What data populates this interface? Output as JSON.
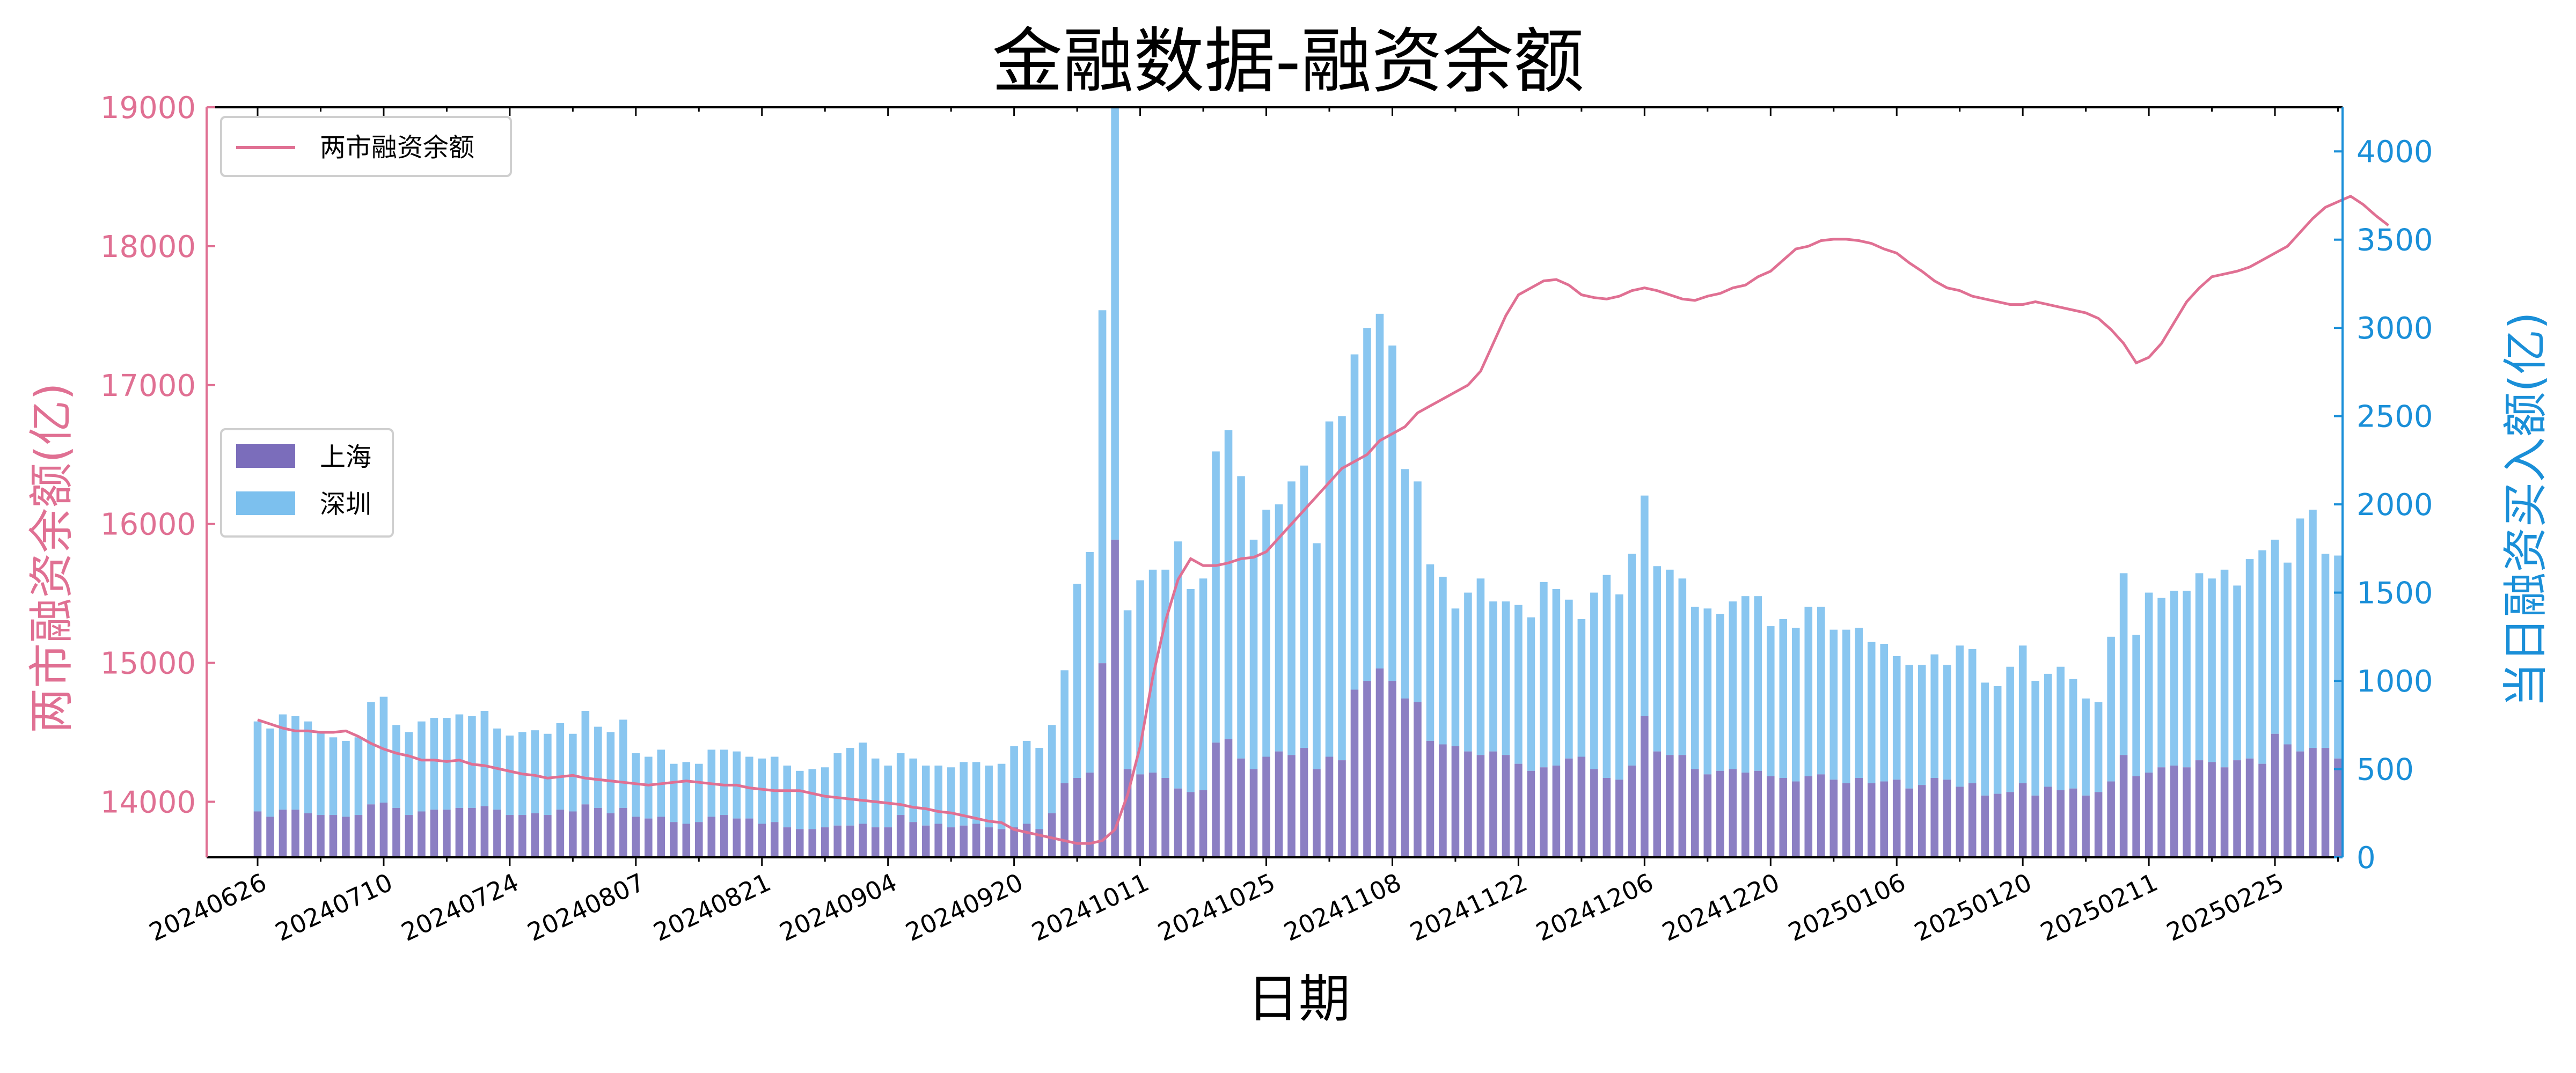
{
  "chart_data": {
    "type": "bar",
    "title": "金融数据-融资余额",
    "xlabel": "日期",
    "ylabel_left": "两市融资余额(亿)",
    "ylabel_right": "当日融资买入额(亿)",
    "ylim_left": [
      13600,
      19000
    ],
    "ylim_right": [
      0,
      4250
    ],
    "yticks_left": [
      14000,
      15000,
      16000,
      17000,
      18000,
      19000
    ],
    "yticks_right": [
      0,
      500,
      1000,
      1500,
      2000,
      2500,
      3000,
      3500,
      4000
    ],
    "x_tick_labels": [
      "20240626",
      "20240710",
      "20240724",
      "20240807",
      "20240821",
      "20240904",
      "20240920",
      "20241011",
      "20241025",
      "20241108",
      "20241122",
      "20241206",
      "20241220",
      "20250106",
      "20250120",
      "20250211",
      "20250225"
    ],
    "x_tick_indices": [
      0,
      10,
      20,
      30,
      40,
      50,
      60,
      70,
      80,
      90,
      100,
      110,
      120,
      130,
      140,
      150,
      160
    ],
    "legend_line": {
      "label": "两市融资余额",
      "color": "#e07093",
      "position": "top-left"
    },
    "legend_bars": [
      {
        "label": "上海",
        "color": "#7b6dbb"
      },
      {
        "label": "深圳",
        "color": "#7cc0ee"
      }
    ],
    "line_color": "#e07093",
    "colors": {
      "left_axis": "#e07093",
      "right_axis": "#1a8fd8",
      "shanghai": "#7b6dbb",
      "shenzhen": "#7cc0ee"
    },
    "series": [
      {
        "name": "两市融资余额",
        "kind": "line",
        "axis": "left",
        "values": [
          14590,
          14560,
          14530,
          14510,
          14510,
          14500,
          14500,
          14510,
          14470,
          14420,
          14380,
          14350,
          14330,
          14300,
          14300,
          14290,
          14300,
          14270,
          14260,
          14240,
          14220,
          14200,
          14190,
          14170,
          14180,
          14190,
          14170,
          14160,
          14150,
          14140,
          14130,
          14120,
          14130,
          14140,
          14150,
          14140,
          14130,
          14120,
          14120,
          14100,
          14090,
          14080,
          14080,
          14080,
          14060,
          14040,
          14030,
          14020,
          14010,
          14000,
          13990,
          13980,
          13960,
          13950,
          13930,
          13920,
          13900,
          13880,
          13860,
          13850,
          13800,
          13780,
          13760,
          13740,
          13720,
          13700,
          13700,
          13720,
          13800,
          14050,
          14400,
          14900,
          15300,
          15600,
          15750,
          15700,
          15700,
          15720,
          15750,
          15760,
          15800,
          15900,
          16000,
          16100,
          16200,
          16300,
          16400,
          16450,
          16500,
          16600,
          16650,
          16700,
          16800,
          16850,
          16900,
          16950,
          17000,
          17100,
          17300,
          17500,
          17650,
          17700,
          17750,
          17760,
          17720,
          17650,
          17630,
          17620,
          17640,
          17680,
          17700,
          17680,
          17650,
          17620,
          17610,
          17640,
          17660,
          17700,
          17720,
          17780,
          17820,
          17900,
          17980,
          18000,
          18040,
          18050,
          18050,
          18040,
          18020,
          17980,
          17950,
          17880,
          17820,
          17750,
          17700,
          17680,
          17640,
          17620,
          17600,
          17580,
          17580,
          17600,
          17580,
          17560,
          17540,
          17520,
          17480,
          17400,
          17300,
          17160,
          17200,
          17300,
          17450,
          17600,
          17700,
          17780,
          17800,
          17820,
          17850,
          17900,
          17950,
          18000,
          18100,
          18200,
          18280,
          18320,
          18360,
          18300,
          18220,
          18150
        ],
        "note_points": "index-aligned with bars"
      },
      {
        "name": "上海",
        "kind": "bar",
        "axis": "right",
        "values": [
          260,
          230,
          270,
          270,
          250,
          240,
          240,
          230,
          240,
          300,
          310,
          280,
          240,
          260,
          270,
          270,
          280,
          280,
          290,
          270,
          240,
          240,
          250,
          240,
          270,
          260,
          300,
          280,
          250,
          280,
          230,
          220,
          230,
          200,
          190,
          200,
          230,
          240,
          220,
          220,
          190,
          200,
          170,
          160,
          160,
          170,
          180,
          180,
          190,
          170,
          170,
          240,
          200,
          180,
          190,
          170,
          180,
          190,
          170,
          160,
          170,
          190,
          160,
          250,
          420,
          450,
          480,
          1100,
          1800,
          500,
          470,
          480,
          450,
          390,
          370,
          380,
          650,
          670,
          560,
          500,
          570,
          600,
          580,
          620,
          500,
          570,
          550,
          950,
          1000,
          1070,
          1000,
          900,
          880,
          660,
          640,
          630,
          600,
          580,
          600,
          580,
          530,
          490,
          510,
          520,
          560,
          570,
          500,
          450,
          440,
          520,
          800,
          600,
          580,
          580,
          500,
          470,
          490,
          500,
          480,
          490,
          460,
          450,
          430,
          460,
          470,
          440,
          420,
          450,
          420,
          430,
          440,
          390,
          410,
          450,
          440,
          400,
          420,
          350,
          360,
          370,
          420,
          350,
          400,
          380,
          390,
          350,
          370,
          430,
          580,
          460,
          480,
          510,
          520,
          510,
          550,
          540,
          510,
          550,
          560,
          530,
          700,
          640,
          600,
          620,
          620,
          560
        ]
      },
      {
        "name": "深圳",
        "kind": "bar",
        "axis": "right",
        "values": [
          510,
          500,
          540,
          530,
          520,
          470,
          440,
          430,
          440,
          580,
          600,
          470,
          470,
          510,
          520,
          520,
          530,
          520,
          540,
          460,
          450,
          470,
          470,
          460,
          490,
          440,
          530,
          460,
          460,
          500,
          360,
          350,
          380,
          330,
          350,
          330,
          380,
          370,
          380,
          350,
          370,
          370,
          350,
          330,
          340,
          340,
          410,
          440,
          460,
          390,
          350,
          350,
          360,
          340,
          330,
          340,
          360,
          350,
          350,
          370,
          460,
          470,
          460,
          500,
          640,
          1100,
          1250,
          2000,
          2450,
          900,
          1100,
          1150,
          1180,
          1400,
          1150,
          1200,
          1650,
          1750,
          1600,
          1300,
          1400,
          1400,
          1550,
          1600,
          1280,
          1900,
          1950,
          1900,
          2000,
          2010,
          1900,
          1300,
          1250,
          1000,
          950,
          780,
          900,
          1000,
          850,
          870,
          900,
          870,
          1050,
          1000,
          900,
          780,
          1000,
          1150,
          1050,
          1200,
          1250,
          1050,
          1050,
          1000,
          920,
          940,
          890,
          950,
          1000,
          990,
          850,
          900,
          870,
          960,
          950,
          850,
          870,
          850,
          800,
          780,
          700,
          700,
          680,
          700,
          650,
          800,
          760,
          640,
          610,
          710,
          780,
          650,
          640,
          700,
          620,
          550,
          510,
          820,
          1030,
          800,
          1020,
          960,
          990,
          1000,
          1060,
          1040,
          1120,
          990,
          1130,
          1210,
          1100,
          1030,
          1320,
          1350,
          1100,
          1150
        ]
      }
    ]
  }
}
